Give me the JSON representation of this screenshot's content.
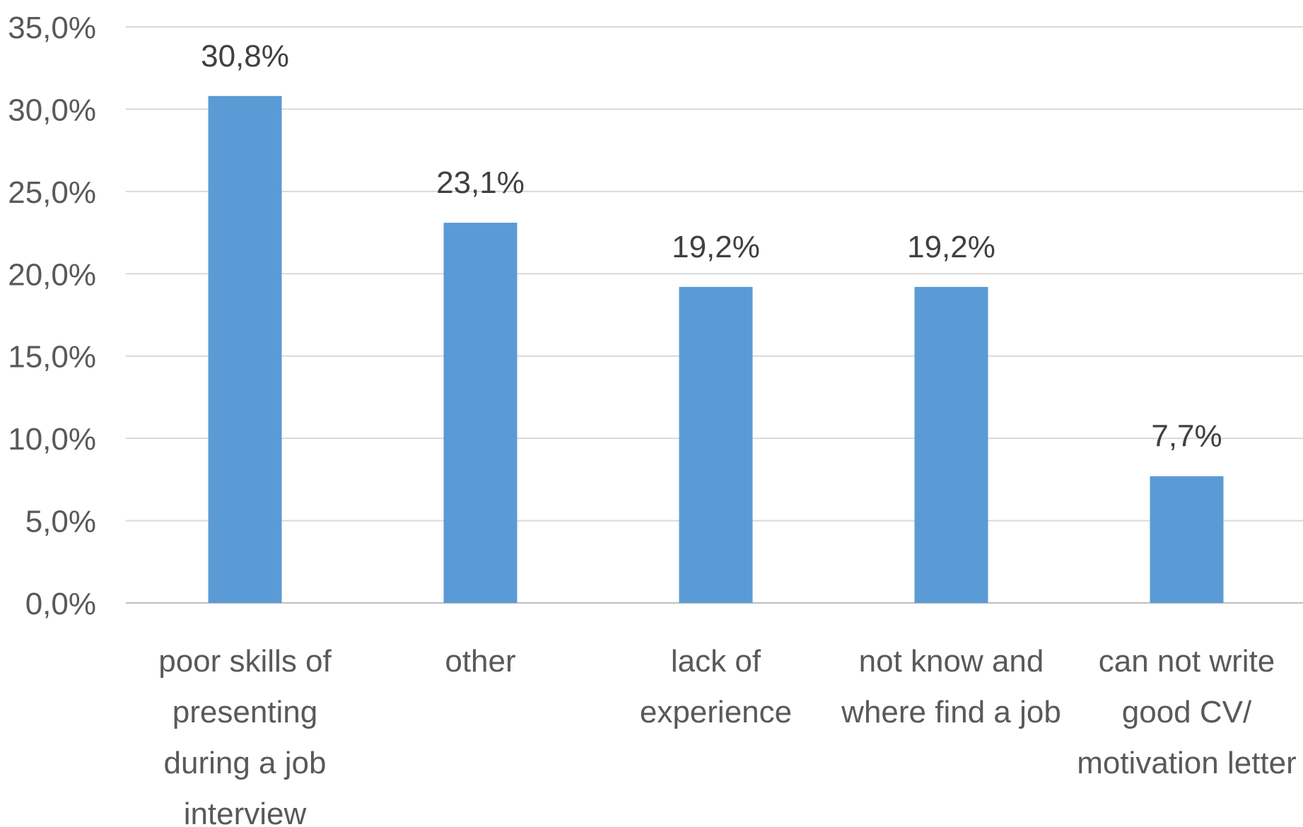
{
  "chart_data": {
    "type": "bar",
    "categories": [
      "poor skills of presenting during a job interview",
      "other",
      "lack of experience",
      "not know and where find a job",
      "can not write good CV/ motivation letter"
    ],
    "category_lines": [
      [
        "poor skills of",
        "presenting",
        "during a job",
        "interview"
      ],
      [
        "other"
      ],
      [
        "lack of",
        "experience"
      ],
      [
        "not know and",
        "where find a job"
      ],
      [
        "can not write",
        "good CV/",
        "motivation letter"
      ]
    ],
    "values": [
      30.8,
      23.1,
      19.2,
      19.2,
      7.7
    ],
    "data_labels": [
      "30,8%",
      "23,1%",
      "19,2%",
      "19,2%",
      "7,7%"
    ],
    "ylim": [
      0,
      35
    ],
    "yticks": [
      0,
      5,
      10,
      15,
      20,
      25,
      30,
      35
    ],
    "ytick_labels": [
      "0,0%",
      "5,0%",
      "10,0%",
      "15,0%",
      "20,0%",
      "25,0%",
      "30,0%",
      "35,0%"
    ],
    "title": "",
    "xlabel": "",
    "ylabel": "",
    "grid": true,
    "legend": "none",
    "bar_color": "#5b9bd5"
  }
}
